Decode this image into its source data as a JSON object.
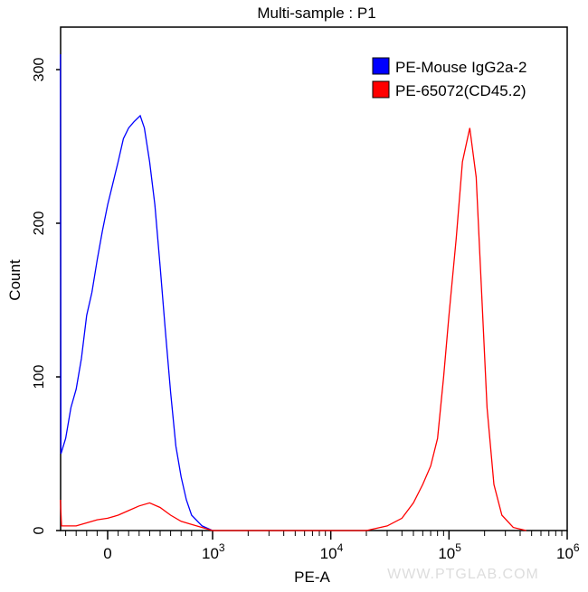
{
  "chart_data": {
    "type": "line",
    "title": "Multi-sample : P1",
    "xlabel": "PE-A",
    "ylabel": "Count",
    "xscale": "biexponential",
    "xlim": [
      -450,
      1000000
    ],
    "ylim": [
      0,
      330
    ],
    "x_ticks": [
      {
        "value": 0,
        "base": "0",
        "exp": ""
      },
      {
        "value": 1000,
        "base": "10",
        "exp": "3"
      },
      {
        "value": 10000,
        "base": "10",
        "exp": "4"
      },
      {
        "value": 100000,
        "base": "10",
        "exp": "5"
      },
      {
        "value": 1000000,
        "base": "10",
        "exp": "6"
      }
    ],
    "y_ticks": [
      0,
      100,
      200,
      300
    ],
    "legend_position": "top-right",
    "watermark": "WWW.PTGLAB.COM",
    "series": [
      {
        "name": "PE-Mouse IgG2a-2",
        "color": "#0000ff",
        "points": [
          [
            -450,
            310
          ],
          [
            -445,
            50
          ],
          [
            -400,
            60
          ],
          [
            -350,
            80
          ],
          [
            -300,
            92
          ],
          [
            -250,
            112
          ],
          [
            -200,
            140
          ],
          [
            -150,
            155
          ],
          [
            -100,
            176
          ],
          [
            -50,
            195
          ],
          [
            0,
            212
          ],
          [
            50,
            226
          ],
          [
            100,
            240
          ],
          [
            150,
            255
          ],
          [
            200,
            262
          ],
          [
            250,
            266
          ],
          [
            310,
            270
          ],
          [
            350,
            262
          ],
          [
            400,
            240
          ],
          [
            450,
            212
          ],
          [
            500,
            172
          ],
          [
            550,
            130
          ],
          [
            600,
            90
          ],
          [
            650,
            55
          ],
          [
            700,
            35
          ],
          [
            750,
            20
          ],
          [
            800,
            10
          ],
          [
            900,
            3
          ],
          [
            1000,
            0
          ]
        ]
      },
      {
        "name": "PE-65072(CD45.2)",
        "color": "#ff0000",
        "points": [
          [
            -450,
            20
          ],
          [
            -440,
            3
          ],
          [
            -300,
            3
          ],
          [
            -200,
            5
          ],
          [
            -100,
            7
          ],
          [
            0,
            8
          ],
          [
            100,
            10
          ],
          [
            200,
            13
          ],
          [
            300,
            16
          ],
          [
            400,
            18
          ],
          [
            500,
            15
          ],
          [
            600,
            10
          ],
          [
            700,
            6
          ],
          [
            800,
            4
          ],
          [
            900,
            2
          ],
          [
            1000,
            0
          ],
          [
            20000,
            0
          ],
          [
            30000,
            3
          ],
          [
            40000,
            8
          ],
          [
            50000,
            18
          ],
          [
            60000,
            30
          ],
          [
            70000,
            42
          ],
          [
            80000,
            60
          ],
          [
            90000,
            100
          ],
          [
            100000,
            140
          ],
          [
            115000,
            190
          ],
          [
            130000,
            240
          ],
          [
            150000,
            262
          ],
          [
            170000,
            230
          ],
          [
            190000,
            150
          ],
          [
            210000,
            80
          ],
          [
            240000,
            30
          ],
          [
            280000,
            10
          ],
          [
            350000,
            2
          ],
          [
            450000,
            0
          ]
        ]
      }
    ]
  }
}
